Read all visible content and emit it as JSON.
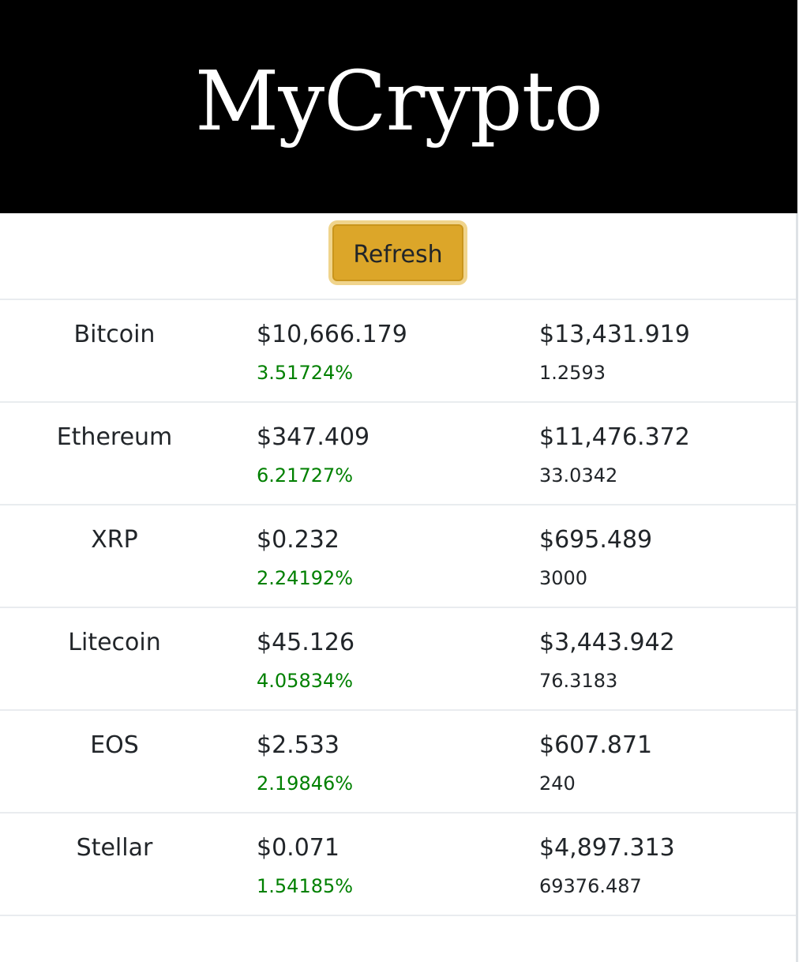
{
  "header": {
    "title": "MyCrypto"
  },
  "toolbar": {
    "refresh_label": "Refresh"
  },
  "colors": {
    "header_bg": "#000000",
    "button_bg": "#dca629",
    "positive_change": "#008000"
  },
  "coins": [
    {
      "name": "Bitcoin",
      "price": "$10,666.179",
      "change": "3.51724%",
      "value": "$13,431.919",
      "amount": "1.2593"
    },
    {
      "name": "Ethereum",
      "price": "$347.409",
      "change": "6.21727%",
      "value": "$11,476.372",
      "amount": "33.0342"
    },
    {
      "name": "XRP",
      "price": "$0.232",
      "change": "2.24192%",
      "value": "$695.489",
      "amount": "3000"
    },
    {
      "name": "Litecoin",
      "price": "$45.126",
      "change": "4.05834%",
      "value": "$3,443.942",
      "amount": "76.3183"
    },
    {
      "name": "EOS",
      "price": "$2.533",
      "change": "2.19846%",
      "value": "$607.871",
      "amount": "240"
    },
    {
      "name": "Stellar",
      "price": "$0.071",
      "change": "1.54185%",
      "value": "$4,897.313",
      "amount": "69376.487"
    }
  ]
}
